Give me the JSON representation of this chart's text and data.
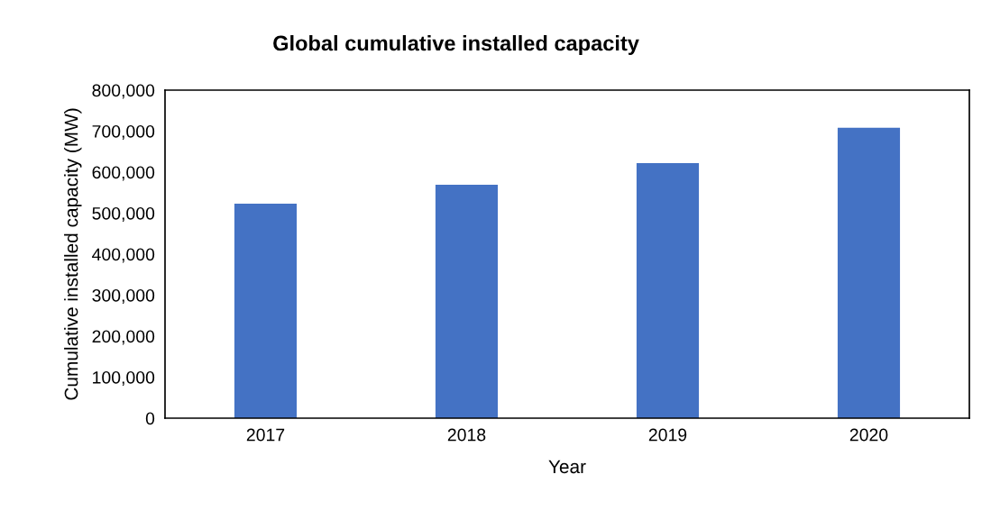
{
  "chart_data": {
    "type": "bar",
    "title": "Global cumulative installed capacity",
    "xlabel": "Year",
    "ylabel": "Cumulative installed capacity (MW)",
    "categories": [
      "2017",
      "2018",
      "2019",
      "2020"
    ],
    "values": [
      523000,
      569000,
      622000,
      708000
    ],
    "color": "#4472c4",
    "ylim": [
      0,
      800000
    ],
    "yticks": [
      {
        "value": 0,
        "label": "0"
      },
      {
        "value": 100000,
        "label": "100,000"
      },
      {
        "value": 200000,
        "label": "200,000"
      },
      {
        "value": 300000,
        "label": "300,000"
      },
      {
        "value": 400000,
        "label": "400,000"
      },
      {
        "value": 500000,
        "label": "500,000"
      },
      {
        "value": 600000,
        "label": "600,000"
      },
      {
        "value": 700000,
        "label": "700,000"
      },
      {
        "value": 800000,
        "label": "800,000"
      }
    ],
    "grid": false,
    "legend": false
  }
}
